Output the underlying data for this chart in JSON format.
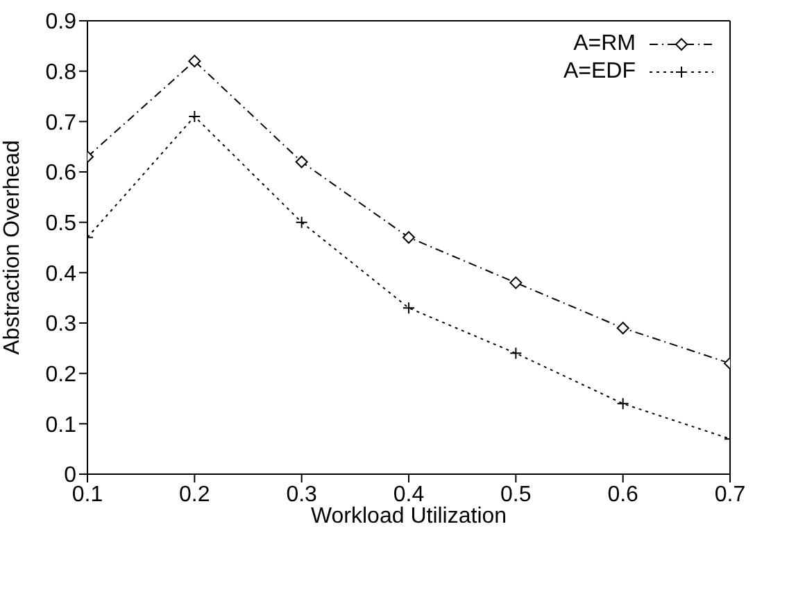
{
  "chart_data": {
    "type": "line",
    "xlabel": "Workload Utilization",
    "ylabel": "Abstraction Overhead",
    "x": [
      0.1,
      0.2,
      0.3,
      0.4,
      0.5,
      0.6,
      0.7
    ],
    "series": [
      {
        "name": "A=RM",
        "color": "#000000",
        "values": [
          0.63,
          0.82,
          0.62,
          0.47,
          0.38,
          0.29,
          0.22
        ],
        "marker": "diamond",
        "line_style": "dashed"
      },
      {
        "name": "A=EDF",
        "color": "#000000",
        "values": [
          0.47,
          0.71,
          0.5,
          0.33,
          0.24,
          0.14,
          0.07
        ],
        "marker": "cross",
        "line_style": "dotted"
      }
    ],
    "xlim": [
      0.1,
      0.7
    ],
    "xticks": [
      0.1,
      0.2,
      0.3,
      0.4,
      0.5,
      0.6,
      0.7
    ],
    "ylim": [
      0,
      0.9
    ],
    "yticks": [
      0,
      0.1,
      0.2,
      0.3,
      0.4,
      0.5,
      0.6,
      0.7,
      0.8,
      0.9
    ],
    "grid": false,
    "legend": "top right"
  }
}
